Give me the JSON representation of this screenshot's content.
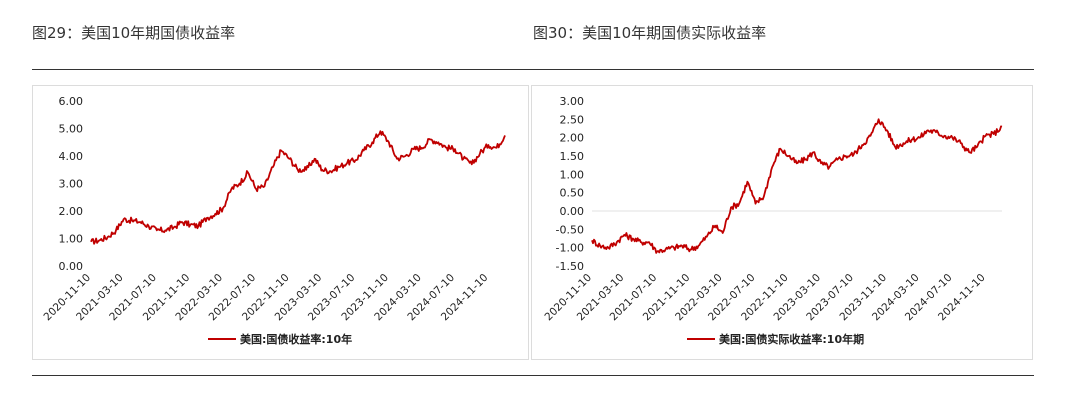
{
  "titles": {
    "left": "图29：美国10年期国债收益率",
    "right": "图30：美国10年期国债实际收益率"
  },
  "colors": {
    "line": "#c00000",
    "grid": "#e0e0e0",
    "axis_text": "#222222"
  },
  "chart_data": [
    {
      "type": "line",
      "title": "",
      "xlabel": "",
      "ylabel": "",
      "ylim": [
        0,
        6
      ],
      "yticks": [
        "6.00",
        "5.00",
        "4.00",
        "3.00",
        "2.00",
        "1.00",
        "0.00"
      ],
      "xticks": [
        "2020-11-10",
        "2021-03-10",
        "2021-07-10",
        "2021-11-10",
        "2022-03-10",
        "2022-07-10",
        "2022-11-10",
        "2023-03-10",
        "2023-07-10",
        "2023-11-10",
        "2024-03-10",
        "2024-07-10",
        "2024-11-10"
      ],
      "grid": false,
      "legend_position": "bottom",
      "series": [
        {
          "name": "美国:国债收益率:10年",
          "x": [
            "2020-11-10",
            "2020-12-10",
            "2021-01-10",
            "2021-02-10",
            "2021-03-10",
            "2021-04-10",
            "2021-05-10",
            "2021-06-10",
            "2021-07-10",
            "2021-08-10",
            "2021-09-10",
            "2021-10-10",
            "2021-11-10",
            "2021-12-10",
            "2022-01-10",
            "2022-02-10",
            "2022-03-10",
            "2022-04-10",
            "2022-05-10",
            "2022-06-10",
            "2022-07-10",
            "2022-08-10",
            "2022-09-10",
            "2022-10-10",
            "2022-11-10",
            "2022-12-10",
            "2023-01-10",
            "2023-02-10",
            "2023-03-10",
            "2023-04-10",
            "2023-05-10",
            "2023-06-10",
            "2023-07-10",
            "2023-08-10",
            "2023-09-10",
            "2023-10-10",
            "2023-11-10",
            "2023-12-10",
            "2024-01-10",
            "2024-02-10",
            "2024-03-10",
            "2024-04-10",
            "2024-05-10",
            "2024-06-10",
            "2024-07-10",
            "2024-08-10",
            "2024-09-10",
            "2024-10-10",
            "2024-11-10",
            "2024-12-10",
            "2025-01-10"
          ],
          "values": [
            0.88,
            0.93,
            1.05,
            1.3,
            1.7,
            1.65,
            1.6,
            1.45,
            1.3,
            1.3,
            1.4,
            1.6,
            1.5,
            1.45,
            1.75,
            1.9,
            2.1,
            2.8,
            3.0,
            3.4,
            2.8,
            2.9,
            3.6,
            4.2,
            3.9,
            3.5,
            3.5,
            3.9,
            3.5,
            3.45,
            3.6,
            3.75,
            3.85,
            4.2,
            4.5,
            4.9,
            4.5,
            3.9,
            4.0,
            4.25,
            4.3,
            4.6,
            4.5,
            4.3,
            4.25,
            3.9,
            3.7,
            4.1,
            4.4,
            4.3,
            4.75
          ]
        }
      ]
    },
    {
      "type": "line",
      "title": "",
      "xlabel": "",
      "ylabel": "",
      "ylim": [
        -1.5,
        3.0
      ],
      "yticks": [
        "3.00",
        "2.50",
        "2.00",
        "1.50",
        "1.00",
        "0.50",
        "0.00",
        "-0.50",
        "-1.00",
        "-1.50"
      ],
      "xticks": [
        "2020-11-10",
        "2021-03-10",
        "2021-07-10",
        "2021-11-10",
        "2022-03-10",
        "2022-07-10",
        "2022-11-10",
        "2023-03-10",
        "2023-07-10",
        "2023-11-10",
        "2024-03-10",
        "2024-07-10",
        "2024-11-10"
      ],
      "grid": false,
      "zero_line": true,
      "legend_position": "bottom",
      "series": [
        {
          "name": "美国:国债实际收益率:10年期",
          "x": [
            "2020-11-10",
            "2020-12-10",
            "2021-01-10",
            "2021-02-10",
            "2021-03-10",
            "2021-04-10",
            "2021-05-10",
            "2021-06-10",
            "2021-07-10",
            "2021-08-10",
            "2021-09-10",
            "2021-10-10",
            "2021-11-10",
            "2021-12-10",
            "2022-01-10",
            "2022-02-10",
            "2022-03-10",
            "2022-04-10",
            "2022-05-10",
            "2022-06-10",
            "2022-07-10",
            "2022-08-10",
            "2022-09-10",
            "2022-10-10",
            "2022-11-10",
            "2022-12-10",
            "2023-01-10",
            "2023-02-10",
            "2023-03-10",
            "2023-04-10",
            "2023-05-10",
            "2023-06-10",
            "2023-07-10",
            "2023-08-10",
            "2023-09-10",
            "2023-10-10",
            "2023-11-10",
            "2023-12-10",
            "2024-01-10",
            "2024-02-10",
            "2024-03-10",
            "2024-04-10",
            "2024-05-10",
            "2024-06-10",
            "2024-07-10",
            "2024-08-10",
            "2024-09-10",
            "2024-10-10",
            "2024-11-10",
            "2024-12-10",
            "2025-01-10"
          ],
          "values": [
            -0.8,
            -0.95,
            -1.0,
            -0.85,
            -0.65,
            -0.75,
            -0.85,
            -0.85,
            -1.1,
            -1.05,
            -1.0,
            -0.95,
            -1.05,
            -0.95,
            -0.7,
            -0.4,
            -0.6,
            0.1,
            0.2,
            0.8,
            0.2,
            0.4,
            1.2,
            1.7,
            1.5,
            1.3,
            1.4,
            1.6,
            1.3,
            1.2,
            1.4,
            1.5,
            1.55,
            1.8,
            2.05,
            2.5,
            2.2,
            1.75,
            1.85,
            1.95,
            2.0,
            2.2,
            2.15,
            2.05,
            2.0,
            1.85,
            1.6,
            1.75,
            2.05,
            2.1,
            2.3
          ]
        }
      ]
    }
  ]
}
